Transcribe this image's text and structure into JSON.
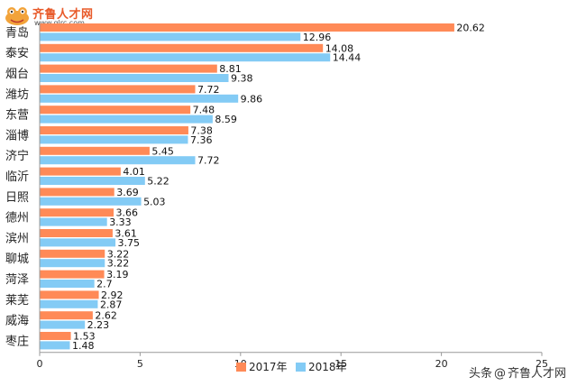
{
  "logo": {
    "name": "齐鲁人才网",
    "url": "www.qlrc.com"
  },
  "watermark": {
    "prefix": "头条",
    "at": "@",
    "account": "齐鲁人才网"
  },
  "chart_data": {
    "type": "bar",
    "orientation": "horizontal",
    "title": "",
    "xlabel": "",
    "ylabel": "",
    "xlim": [
      0,
      25
    ],
    "xticks": [
      0,
      5,
      10,
      15,
      20,
      25
    ],
    "grid": false,
    "legend_position": "bottom",
    "categories": [
      "青岛",
      "泰安",
      "烟台",
      "潍坊",
      "东营",
      "淄博",
      "济宁",
      "临沂",
      "日照",
      "德州",
      "滨州",
      "聊城",
      "菏泽",
      "莱芜",
      "威海",
      "枣庄"
    ],
    "series": [
      {
        "name": "2017年",
        "color": "#ff8a57",
        "values": [
          20.62,
          14.08,
          8.81,
          7.72,
          7.48,
          7.38,
          5.45,
          4.01,
          3.69,
          3.66,
          3.61,
          3.22,
          3.19,
          2.92,
          2.62,
          1.53
        ],
        "labels": [
          "20.62",
          "14.08",
          "8.81",
          "7.72",
          "7.48",
          "7.38",
          "5.45",
          "4.01",
          "3.69",
          "3.66",
          "3.61",
          "3.22",
          "3.19",
          "2.92",
          "2.62",
          "1.53"
        ]
      },
      {
        "name": "2018年",
        "color": "#83cbf5",
        "values": [
          12.96,
          14.44,
          9.38,
          9.86,
          8.59,
          7.36,
          7.72,
          5.22,
          5.03,
          3.33,
          3.75,
          3.22,
          2.7,
          2.87,
          2.23,
          1.48
        ],
        "labels": [
          "12.96",
          "14.44",
          "9.38",
          "9.86",
          "8.59",
          "7.36",
          "7.72",
          "5.22",
          "5.03",
          "3.33",
          "3.75",
          "3.22",
          "2.7",
          "2.87",
          "2.23",
          "1.48"
        ]
      }
    ]
  }
}
